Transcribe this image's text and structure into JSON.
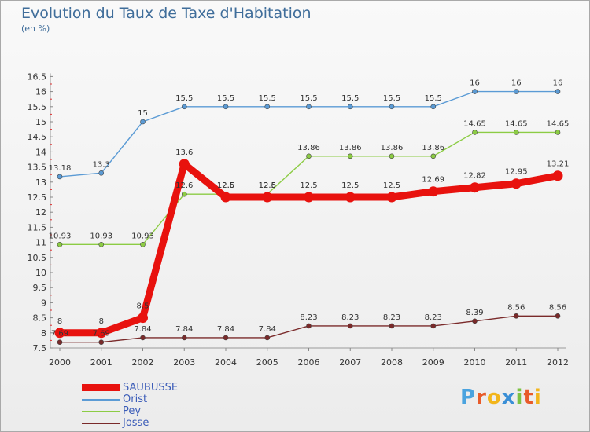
{
  "title": "Evolution du Taux de Taxe d'Habitation",
  "unit": "(en %)",
  "logo_letters": [
    {
      "char": "P",
      "color": "#4aa3df"
    },
    {
      "char": "r",
      "color": "#e85b2a"
    },
    {
      "char": "o",
      "color": "#f2b51b"
    },
    {
      "char": "x",
      "color": "#3a8fd6"
    },
    {
      "char": "i",
      "color": "#7cc242"
    },
    {
      "char": "t",
      "color": "#e85b2a"
    },
    {
      "char": "i",
      "color": "#f2b51b"
    }
  ],
  "chart_data": {
    "type": "line",
    "title": "Evolution du Taux de Taxe d'Habitation",
    "ylabel": "(en %)",
    "xlabel": "",
    "categories": [
      "2000",
      "2001",
      "2002",
      "2003",
      "2004",
      "2005",
      "2006",
      "2007",
      "2008",
      "2009",
      "2010",
      "2011",
      "2012"
    ],
    "ylim": [
      7.5,
      16.5
    ],
    "yticks": [
      "7.5",
      "8",
      "8.5",
      "9",
      "9.5",
      "10",
      "10.5",
      "11",
      "11.5",
      "12",
      "12.5",
      "13",
      "13.5",
      "14",
      "14.5",
      "15",
      "15.5",
      "16",
      "16.5"
    ],
    "grid": false,
    "legend_position": "bottom-left",
    "series": [
      {
        "name": "Orist",
        "color": "#5b9bd5",
        "values": [
          13.18,
          13.3,
          15,
          15.5,
          15.5,
          15.5,
          15.5,
          15.5,
          15.5,
          15.5,
          16,
          16,
          16
        ],
        "labels": [
          "13.18",
          "13.3",
          "15",
          "15.5",
          "15.5",
          "15.5",
          "15.5",
          "15.5",
          "15.5",
          "15.5",
          "16",
          "16",
          "16"
        ]
      },
      {
        "name": "Pey",
        "color": "#8ccc44",
        "values": [
          10.93,
          10.93,
          10.93,
          12.6,
          12.6,
          12.6,
          13.86,
          13.86,
          13.86,
          13.86,
          14.65,
          14.65,
          14.65
        ],
        "labels": [
          "10.93",
          "10.93",
          "10.93",
          "12.6",
          "12.6",
          "12.6",
          "13.86",
          "13.86",
          "13.86",
          "13.86",
          "14.65",
          "14.65",
          "14.65"
        ]
      },
      {
        "name": "Josse",
        "color": "#7a2a2a",
        "values": [
          7.69,
          7.69,
          7.84,
          7.84,
          7.84,
          7.84,
          8.23,
          8.23,
          8.23,
          8.23,
          8.39,
          8.56,
          8.56
        ],
        "labels": [
          "7.69",
          "7.69",
          "7.84",
          "7.84",
          "7.84",
          "7.84",
          "8.23",
          "8.23",
          "8.23",
          "8.23",
          "8.39",
          "8.56",
          "8.56"
        ]
      },
      {
        "name": "SAUBUSSE",
        "color": "#e8120e",
        "values": [
          8,
          8,
          8.5,
          13.6,
          12.5,
          12.5,
          12.5,
          12.5,
          12.5,
          12.69,
          12.82,
          12.95,
          13.21
        ],
        "labels": [
          "8",
          "8",
          "8.5",
          "13.6",
          "12.5",
          "12.5",
          "12.5",
          "12.5",
          "12.5",
          "12.69",
          "12.82",
          "12.95",
          "13.21"
        ]
      }
    ],
    "legend_order": [
      "SAUBUSSE",
      "Orist",
      "Pey",
      "Josse"
    ]
  }
}
